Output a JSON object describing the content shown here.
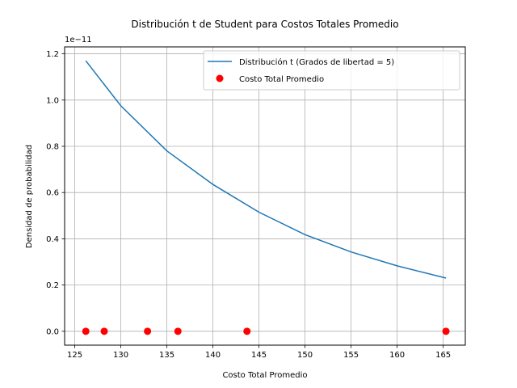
{
  "chart_data": {
    "type": "line",
    "title": "Distribución t de Student para Costos Totales Promedio",
    "xlabel": "Costo Total Promedio",
    "ylabel": "Densidad de probabilidad",
    "y_offset_text": "1e−11",
    "xlim": [
      123.9,
      167.4
    ],
    "ylim": [
      -0.06,
      1.23
    ],
    "x_ticks": [
      125,
      130,
      135,
      140,
      145,
      150,
      155,
      160,
      165
    ],
    "y_ticks": [
      0.0,
      0.2,
      0.4,
      0.6,
      0.8,
      1.0,
      1.2
    ],
    "y_tick_labels": [
      "0.0",
      "0.2",
      "0.4",
      "0.6",
      "0.8",
      "1.0",
      "1.2"
    ],
    "grid": true,
    "legend_position": "top-right",
    "series": [
      {
        "name": "Distribución t (Grados de libertad = 5)",
        "kind": "line",
        "color": "#1f77b4",
        "x": [
          126.2,
          130,
          135,
          140,
          145,
          150,
          155,
          160,
          165.3
        ],
        "y": [
          1.17,
          0.975,
          0.78,
          0.635,
          0.515,
          0.418,
          0.343,
          0.283,
          0.23
        ]
      },
      {
        "name": "Costo Total Promedio",
        "kind": "scatter",
        "color": "#ff0000",
        "x": [
          126.2,
          128.2,
          132.9,
          136.2,
          143.7,
          165.3
        ],
        "y": [
          0,
          0,
          0,
          0,
          0,
          0
        ]
      }
    ]
  }
}
